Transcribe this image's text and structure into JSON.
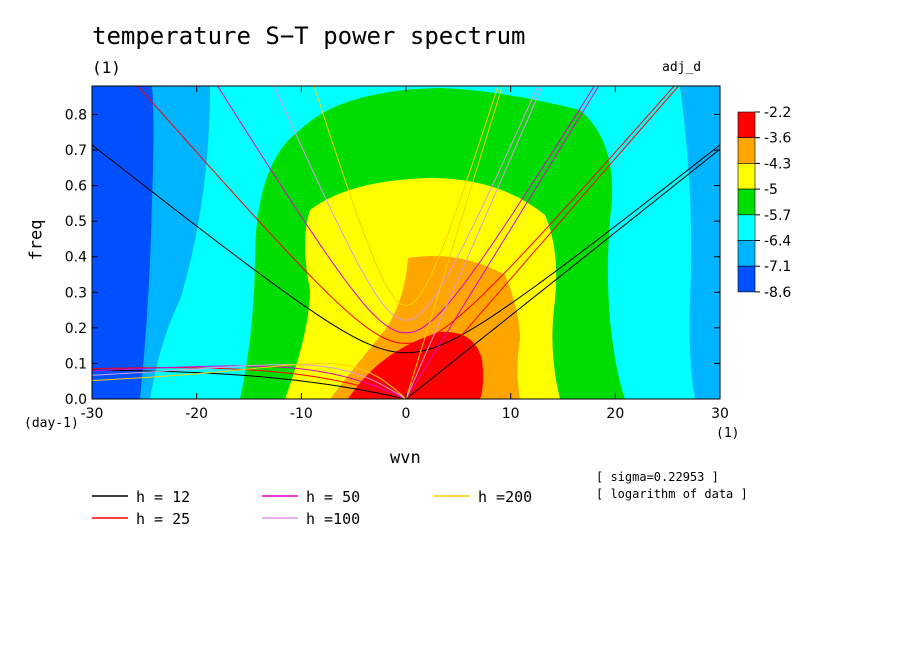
{
  "chart_data": {
    "type": "heatmap",
    "title": "temperature S−T power spectrum",
    "subtitle": "(1)",
    "run_label": "adj_d",
    "xlabel": "wvn",
    "ylabel": "freq",
    "x_unit_label": "(1)",
    "y_unit_label": "(day-1)",
    "xlim": [
      -30,
      30
    ],
    "ylim": [
      0,
      0.88
    ],
    "xticks": [
      "-30",
      "-20",
      "-10",
      "0",
      "10",
      "20",
      "30"
    ],
    "yticks": [
      "0.0",
      "0.1",
      "0.2",
      "0.3",
      "0.4",
      "0.5",
      "0.6",
      "0.7",
      "0.8"
    ],
    "colorbar": {
      "levels": [
        "-2.2",
        "-3.6",
        "-4.3",
        "-5",
        "-5.7",
        "-6.4",
        "-7.1",
        "-8.6"
      ],
      "colors": [
        "#ff0000",
        "#ffa500",
        "#ffff00",
        "#00dd00",
        "#00ffff",
        "#00b4ff",
        "#0050ff"
      ]
    },
    "legend": [
      {
        "label": "h = 12",
        "color": "#000000",
        "h": 12
      },
      {
        "label": "h = 25",
        "color": "#ff0000",
        "h": 25
      },
      {
        "label": "h = 50",
        "color": "#dd00cc",
        "h": 50
      },
      {
        "label": "h =100",
        "color": "#dd99dd",
        "h": 100
      },
      {
        "label": "h =200",
        "color": "#ffcc00",
        "h": 200
      }
    ],
    "notes": [
      "[ sigma=0.22953 ]",
      "[ logarithm of data ]"
    ]
  }
}
